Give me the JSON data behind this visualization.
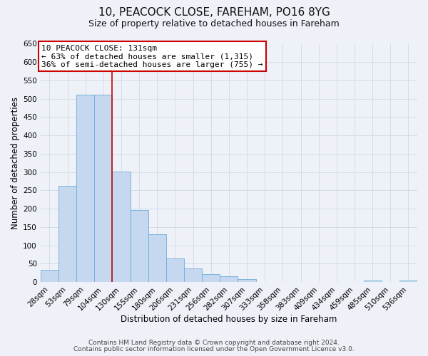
{
  "title": "10, PEACOCK CLOSE, FAREHAM, PO16 8YG",
  "subtitle": "Size of property relative to detached houses in Fareham",
  "xlabel": "Distribution of detached houses by size in Fareham",
  "ylabel": "Number of detached properties",
  "footer_line1": "Contains HM Land Registry data © Crown copyright and database right 2024.",
  "footer_line2": "Contains public sector information licensed under the Open Government Licence v3.0.",
  "bin_labels": [
    "28sqm",
    "53sqm",
    "79sqm",
    "104sqm",
    "130sqm",
    "155sqm",
    "180sqm",
    "206sqm",
    "231sqm",
    "256sqm",
    "282sqm",
    "307sqm",
    "333sqm",
    "358sqm",
    "383sqm",
    "409sqm",
    "434sqm",
    "459sqm",
    "485sqm",
    "510sqm",
    "536sqm"
  ],
  "bar_values": [
    33,
    263,
    512,
    512,
    302,
    196,
    130,
    65,
    38,
    22,
    15,
    8,
    0,
    0,
    0,
    0,
    0,
    0,
    5,
    0,
    5
  ],
  "bar_color": "#c6d8ef",
  "bar_edgecolor": "#6baed6",
  "bar_linewidth": 0.6,
  "vline_color": "#cc0000",
  "vline_linewidth": 1.2,
  "vline_index": 3.5,
  "annotation_title": "10 PEACOCK CLOSE: 131sqm",
  "annotation_line1": "← 63% of detached houses are smaller (1,315)",
  "annotation_line2": "36% of semi-detached houses are larger (755) →",
  "annotation_box_edgecolor": "#cc0000",
  "annotation_box_facecolor": "#ffffff",
  "ylim": [
    0,
    650
  ],
  "yticks": [
    0,
    50,
    100,
    150,
    200,
    250,
    300,
    350,
    400,
    450,
    500,
    550,
    600,
    650
  ],
  "grid_color": "#d0d8e8",
  "bg_color": "#eef2f8",
  "title_fontsize": 11,
  "subtitle_fontsize": 9,
  "axis_label_fontsize": 8.5,
  "tick_fontsize": 7.5,
  "annotation_fontsize": 8,
  "footer_fontsize": 6.5
}
